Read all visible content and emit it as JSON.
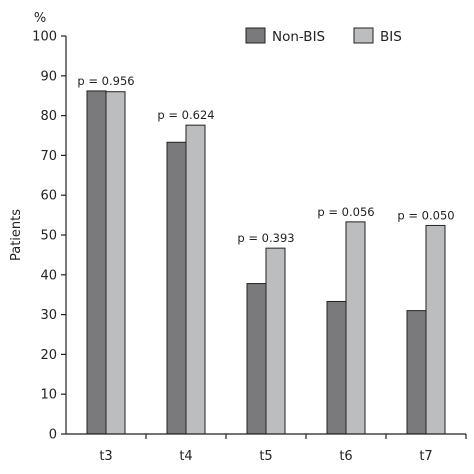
{
  "chart_data": {
    "type": "bar",
    "categories": [
      "t3",
      "t4",
      "t5",
      "t6",
      "t7"
    ],
    "series": [
      {
        "name": "Non-BIS",
        "values": [
          86.2,
          73.3,
          37.8,
          33.3,
          31.0
        ],
        "color": "#7a7a7c"
      },
      {
        "name": "BIS",
        "values": [
          86.0,
          77.6,
          46.7,
          53.3,
          52.4
        ],
        "color": "#bcbdbf"
      }
    ],
    "annotations": [
      "p = 0.956",
      "p = 0.624",
      "p = 0.393",
      "p = 0.056",
      "p = 0.050"
    ],
    "ylabel": "Patients",
    "yunit": "%",
    "ylim": [
      0,
      100
    ],
    "yticks": [
      0,
      10,
      20,
      30,
      40,
      50,
      60,
      70,
      80,
      90,
      100
    ],
    "grid": false,
    "legend_position": "top-right"
  }
}
